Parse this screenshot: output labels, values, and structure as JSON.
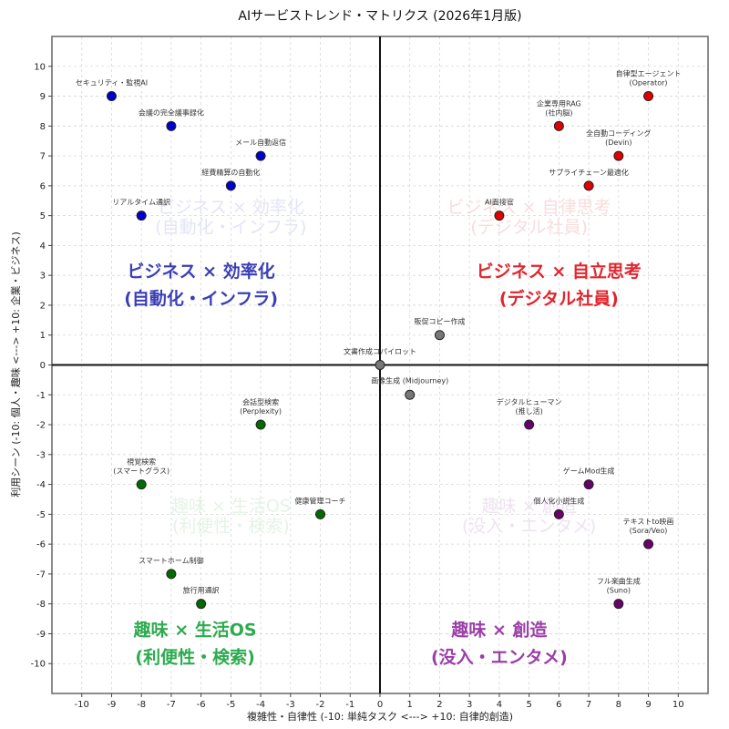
{
  "chart_data": {
    "type": "scatter",
    "title": "AIサービストレンド・マトリクス (2026年1月版)",
    "xlabel": "複雑性・自律性 (-10: 単純タスク <---> +10: 自律的創造)",
    "ylabel": "利用シーン (-10: 個人・趣味 <---> +10: 企業・ビジネス)",
    "xlim": [
      -11,
      11
    ],
    "ylim": [
      -11,
      11
    ],
    "xticks": [
      -10,
      -9,
      -8,
      -7,
      -6,
      -5,
      -4,
      -3,
      -2,
      -1,
      0,
      1,
      2,
      3,
      4,
      5,
      6,
      7,
      8,
      9,
      10
    ],
    "yticks": [
      -10,
      -9,
      -8,
      -7,
      -6,
      -5,
      -4,
      -3,
      -2,
      -1,
      0,
      1,
      2,
      3,
      4,
      5,
      6,
      7,
      8,
      9,
      10
    ],
    "grid": true,
    "quadrants": [
      {
        "name": "business-efficiency",
        "line1": "ビジネス × 効率化",
        "line2": "(自動化・インフラ)",
        "color": "#3b3fb5",
        "faint_color": "#e3e4f6"
      },
      {
        "name": "business-autonomy",
        "line1": "ビジネス × 自立思考",
        "line2": "(デジタル社員)",
        "faint_line1": "ビジネス × 自律思考",
        "color": "#e0262d",
        "faint_color": "#f9dcdc"
      },
      {
        "name": "hobby-lifeos",
        "line1": "趣味 × 生活OS",
        "line2": "(利便性・検索)",
        "color": "#2eaa4f",
        "faint_color": "#e4f3e6"
      },
      {
        "name": "hobby-creation",
        "line1": "趣味 × 創造",
        "line2": "(没入・エンタメ)",
        "color": "#9b3fa8",
        "faint_color": "#eee2f0"
      }
    ],
    "series": [
      {
        "name": "business-efficiency",
        "color": "#0000cc",
        "points": [
          {
            "x": -9,
            "y": 9,
            "label": [
              "セキュリティ・監視AI"
            ]
          },
          {
            "x": -7,
            "y": 8,
            "label": [
              "会議の完全議事録化"
            ]
          },
          {
            "x": -4,
            "y": 7,
            "label": [
              "メール自動返信"
            ]
          },
          {
            "x": -5,
            "y": 6,
            "label": [
              "経費精算の自動化"
            ]
          },
          {
            "x": -8,
            "y": 5,
            "label": [
              "リアルタイム通訳"
            ]
          }
        ]
      },
      {
        "name": "business-autonomy",
        "color": "#e00000",
        "points": [
          {
            "x": 9,
            "y": 9,
            "label": [
              "自律型エージェント",
              "(Operator)"
            ]
          },
          {
            "x": 6,
            "y": 8,
            "label": [
              "企業専用RAG",
              "(社内脳)"
            ]
          },
          {
            "x": 8,
            "y": 7,
            "label": [
              "全自動コーディング",
              "(Devin)"
            ]
          },
          {
            "x": 7,
            "y": 6,
            "label": [
              "サプライチェーン最適化"
            ]
          },
          {
            "x": 4,
            "y": 5,
            "label": [
              "AI面接官"
            ]
          }
        ]
      },
      {
        "name": "neutral",
        "color": "#777777",
        "points": [
          {
            "x": 2,
            "y": 1,
            "label": [
              "販促コピー作成"
            ]
          },
          {
            "x": 0,
            "y": 0,
            "label": [
              "文書作成コパイロット"
            ]
          },
          {
            "x": 1,
            "y": -1,
            "label": [
              "画像生成 (Midjourney)"
            ],
            "label_below": true
          }
        ]
      },
      {
        "name": "hobby-lifeos",
        "color": "#006b00",
        "points": [
          {
            "x": -4,
            "y": -2,
            "label": [
              "会話型検索",
              "(Perplexity)"
            ]
          },
          {
            "x": -8,
            "y": -4,
            "label": [
              "視覚検索",
              "(スマートグラス)"
            ]
          },
          {
            "x": -2,
            "y": -5,
            "label": [
              "健康管理コーチ"
            ]
          },
          {
            "x": -7,
            "y": -7,
            "label": [
              "スマートホーム制御"
            ]
          },
          {
            "x": -6,
            "y": -8,
            "label": [
              "旅行用通訳"
            ]
          }
        ]
      },
      {
        "name": "hobby-creation",
        "color": "#6a006a",
        "points": [
          {
            "x": 5,
            "y": -2,
            "label": [
              "デジタルヒューマン",
              "(推し活)"
            ]
          },
          {
            "x": 7,
            "y": -4,
            "label": [
              "ゲームMod生成"
            ]
          },
          {
            "x": 6,
            "y": -5,
            "label": [
              "個人化小説生成"
            ]
          },
          {
            "x": 9,
            "y": -6,
            "label": [
              "テキストto映画",
              "(Sora/Veo)"
            ]
          },
          {
            "x": 8,
            "y": -8,
            "label": [
              "フル楽曲生成",
              "(Suno)"
            ]
          }
        ]
      }
    ]
  }
}
